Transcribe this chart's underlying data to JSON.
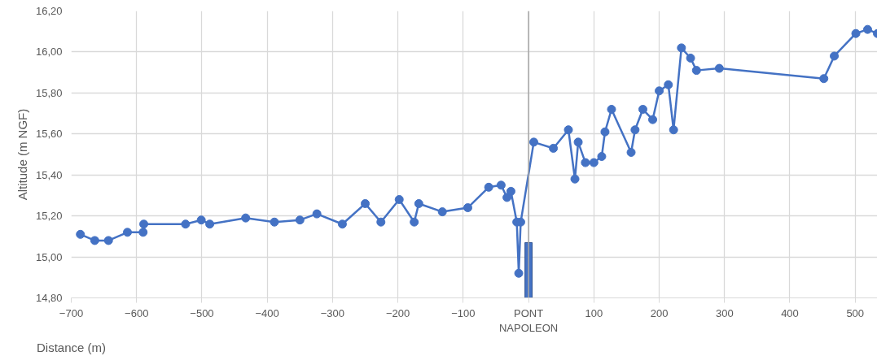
{
  "chart_data": {
    "type": "line",
    "xlabel": "Distance (m)",
    "ylabel": "Altitude (m NGF)",
    "series": [
      {
        "color": "#4472c4",
        "marker": "circle",
        "line_style": "solid",
        "x": [
          -686,
          -664,
          -643,
          -614,
          -590,
          -589,
          -525,
          -501,
          -488,
          -433,
          -389,
          -350,
          -324,
          -285,
          -250,
          -226,
          -198,
          -175,
          -168,
          -132,
          -93,
          -61,
          -42,
          -33,
          -27,
          -18,
          -15,
          -12,
          8,
          38,
          61,
          71,
          76,
          87,
          100,
          112,
          117,
          127,
          157,
          163,
          175,
          190,
          200,
          214,
          222,
          234,
          248,
          257,
          292,
          452,
          468,
          501,
          519,
          534
        ],
        "values": [
          15.11,
          15.08,
          15.08,
          15.12,
          15.12,
          15.16,
          15.16,
          15.18,
          15.16,
          15.19,
          15.17,
          15.18,
          15.21,
          15.16,
          15.26,
          15.17,
          15.28,
          15.17,
          15.26,
          15.22,
          15.24,
          15.34,
          15.35,
          15.29,
          15.32,
          15.17,
          14.92,
          15.17,
          15.56,
          15.53,
          15.62,
          15.38,
          15.56,
          15.46,
          15.46,
          15.49,
          15.61,
          15.72,
          15.51,
          15.62,
          15.72,
          15.67,
          15.81,
          15.84,
          15.62,
          16.02,
          15.97,
          15.91,
          15.92,
          15.87,
          15.98,
          16.09,
          16.11,
          16.09
        ]
      },
      {
        "type": "bar",
        "color": "#4472c4",
        "x": [
          0
        ],
        "values": [
          15.07
        ]
      }
    ],
    "ref_lines": [
      {
        "axis": "x",
        "value": 0,
        "label": "PONT NAPOLEON",
        "color": "#a6a6a6"
      }
    ],
    "xlim": [
      -700,
      534
    ],
    "xticks": [
      -700,
      -600,
      -500,
      -400,
      -300,
      -200,
      -100,
      {
        "value": 0,
        "label": null
      },
      100,
      200,
      300,
      400,
      500
    ],
    "ylim": [
      14.8,
      16.2
    ],
    "yticks": [
      {
        "value": 14.8,
        "label": "14,80"
      },
      {
        "value": 15.0,
        "label": "15,00"
      },
      {
        "value": 15.2,
        "label": "15,20"
      },
      {
        "value": 15.4,
        "label": "15,40"
      },
      {
        "value": 15.6,
        "label": "15,60"
      },
      {
        "value": 15.8,
        "label": "15,80"
      },
      {
        "value": 16.0,
        "label": "16,00"
      },
      {
        "value": 16.2,
        "label": "16,20"
      }
    ],
    "grid": true
  }
}
